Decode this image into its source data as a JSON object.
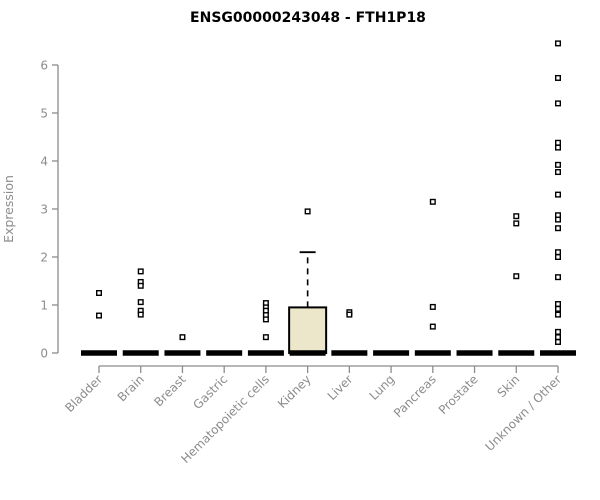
{
  "chart_data": {
    "type": "boxplot",
    "title": "ENSG00000243048 - FTH1P18",
    "ylabel": "Expression",
    "xlabel": "",
    "ylim": [
      0,
      6.6
    ],
    "yticks": [
      0,
      1,
      2,
      3,
      4,
      5,
      6
    ],
    "grid": false,
    "legend": "none",
    "categories": [
      "Bladder",
      "Brain",
      "Breast",
      "Gastric",
      "Hematopoietic cells",
      "Kidney",
      "Liver",
      "Lung",
      "Pancreas",
      "Prostate",
      "Skin",
      "Unknown / Other"
    ],
    "groups": [
      {
        "category": "Bladder",
        "box": {
          "median": 0,
          "q1": 0,
          "q3": 0,
          "whisker_high": 0
        },
        "points": [
          1.25,
          0.78
        ]
      },
      {
        "category": "Brain",
        "box": {
          "median": 0,
          "q1": 0,
          "q3": 0,
          "whisker_high": 0
        },
        "points": [
          1.7,
          1.48,
          1.4,
          1.06,
          0.88,
          0.8
        ]
      },
      {
        "category": "Breast",
        "box": {
          "median": 0,
          "q1": 0,
          "q3": 0,
          "whisker_high": 0
        },
        "points": [
          0.33
        ]
      },
      {
        "category": "Gastric",
        "box": {
          "median": 0,
          "q1": 0,
          "q3": 0,
          "whisker_high": 0
        },
        "points": []
      },
      {
        "category": "Hematopoietic cells",
        "box": {
          "median": 0,
          "q1": 0,
          "q3": 0,
          "whisker_high": 0
        },
        "points": [
          1.04,
          0.95,
          0.88,
          0.79,
          0.7,
          0.33
        ]
      },
      {
        "category": "Kidney",
        "box": {
          "median": 0,
          "q1": 0,
          "q3": 0.95,
          "whisker_high": 2.1
        },
        "points": [
          2.95
        ]
      },
      {
        "category": "Liver",
        "box": {
          "median": 0,
          "q1": 0,
          "q3": 0,
          "whisker_high": 0
        },
        "points": [
          0.85,
          0.8
        ]
      },
      {
        "category": "Lung",
        "box": {
          "median": 0,
          "q1": 0,
          "q3": 0,
          "whisker_high": 0
        },
        "points": []
      },
      {
        "category": "Pancreas",
        "box": {
          "median": 0,
          "q1": 0,
          "q3": 0,
          "whisker_high": 0
        },
        "points": [
          3.15,
          0.96,
          0.55
        ]
      },
      {
        "category": "Prostate",
        "box": {
          "median": 0,
          "q1": 0,
          "q3": 0,
          "whisker_high": 0
        },
        "points": []
      },
      {
        "category": "Skin",
        "box": {
          "median": 0,
          "q1": 0,
          "q3": 0,
          "whisker_high": 0
        },
        "points": [
          2.85,
          2.7,
          1.6
        ]
      },
      {
        "category": "Unknown / Other",
        "box": {
          "median": 0,
          "q1": 0,
          "q3": 0,
          "whisker_high": 0
        },
        "points": [
          6.45,
          5.73,
          5.2,
          4.38,
          4.28,
          3.92,
          3.77,
          3.3,
          2.87,
          2.78,
          2.6,
          2.1,
          2.0,
          1.58,
          1.02,
          0.92,
          0.8,
          0.44,
          0.33,
          0.23
        ]
      }
    ],
    "colors": {
      "background": "#FFFFFF",
      "title": "#000000",
      "axis": "#8C8C8C",
      "tick_label": "#8C8C8C",
      "bar": "#000000",
      "box_fill": "#ECE7CB",
      "box_border": "#000000",
      "point": "#000000",
      "point_fill": "#FFFFFF"
    }
  }
}
